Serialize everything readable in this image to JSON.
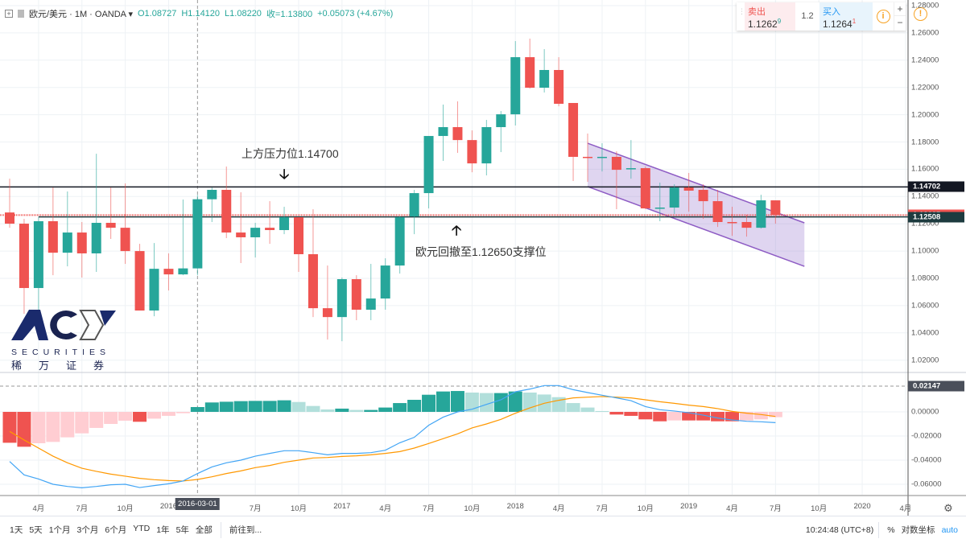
{
  "header": {
    "toolbar_icon": "add-indicator-icon",
    "symbol": "欧元/美元",
    "interval": "1M",
    "source": "OANDA",
    "open": "O1.08727",
    "high": "H1.14120",
    "low": "L1.08220",
    "close": "收=1.13800",
    "change": "+0.05073 (+4.67%)"
  },
  "quote": {
    "sell_label": "卖出",
    "sell_price": "1.1262",
    "sell_sup": "9",
    "spread": "1.2",
    "buy_label": "买入",
    "buy_price": "1.1264",
    "buy_sup": "1",
    "info": "i",
    "plus": "+",
    "minus": "−",
    "alert": "!"
  },
  "annotations": {
    "resistance": "上方压力位1.14700",
    "support": "欧元回撤至1.12650支撑位",
    "down_arrow": "🡣",
    "up_arrow": "🡡"
  },
  "logo": {
    "brand": "ACY",
    "sub": "SECURITIES",
    "cn": "稀万证券"
  },
  "price_axis": {
    "ticks": [
      "1.28000",
      "1.26000",
      "1.24000",
      "1.22000",
      "1.20000",
      "1.18000",
      "1.16000",
      "1.14000",
      "1.12000",
      "1.10000",
      "1.08000",
      "1.06000",
      "1.04000",
      "1.02000"
    ],
    "markers": [
      {
        "label": "1.14702",
        "color": "#131722"
      },
      {
        "label": "1.12635",
        "color": "#ef5350"
      },
      {
        "label": "1.12508",
        "color": "#1d3b3f"
      }
    ]
  },
  "macd_axis": {
    "ticks": [
      "0.00000",
      "-0.02000",
      "-0.04000",
      "-0.06000"
    ],
    "crosshair": "0.02147"
  },
  "time_axis": {
    "labels": [
      "4月",
      "7月",
      "10月",
      "2016",
      "7月",
      "10月",
      "2017",
      "4月",
      "7月",
      "10月",
      "2018",
      "4月",
      "7月",
      "10月",
      "2019",
      "4月",
      "7月",
      "10月",
      "2020",
      "4月"
    ],
    "crosshair": "2016-03-01"
  },
  "bottom": {
    "ranges": [
      "1天",
      "5天",
      "1个月",
      "3个月",
      "6个月",
      "YTD",
      "1年",
      "5年",
      "全部"
    ],
    "goto": "前往到...",
    "time": "10:24:48 (UTC+8)",
    "percent": "%",
    "log": "对数坐标",
    "auto": "auto"
  },
  "colors": {
    "up": "#26a69a",
    "down": "#ef5350",
    "up_light": "#b2dfdb",
    "down_light": "#ffcdd2",
    "macd": "#42a5f5",
    "signal": "#ff9800",
    "channel": "#9575cd"
  },
  "chart_data": {
    "type": "candlestick",
    "title": "欧元/美元 · 1M · OANDA",
    "start_month": "2015-02",
    "ylim": [
      1.02,
      1.28
    ],
    "ohlc": [
      [
        1.1283,
        1.1531,
        1.1171,
        1.1201
      ],
      [
        1.1201,
        1.1236,
        1.054,
        1.0729
      ],
      [
        1.0729,
        1.1248,
        1.0522,
        1.1219
      ],
      [
        1.1219,
        1.1466,
        1.0823,
        1.0988
      ],
      [
        1.0988,
        1.1437,
        1.0888,
        1.1136
      ],
      [
        1.1136,
        1.1213,
        1.0806,
        1.0983
      ],
      [
        1.0983,
        1.1714,
        1.0847,
        1.1207
      ],
      [
        1.1207,
        1.1466,
        1.1089,
        1.1171
      ],
      [
        1.1171,
        1.1496,
        1.0906,
        1.1
      ],
      [
        1.1,
        1.1053,
        1.0564,
        1.0564
      ],
      [
        1.0564,
        1.1059,
        1.0522,
        1.087
      ],
      [
        1.087,
        1.0983,
        1.0711,
        1.0829
      ],
      [
        1.0829,
        1.1378,
        1.0823,
        1.0873
      ],
      [
        1.0873,
        1.1412,
        1.0822,
        1.138
      ],
      [
        1.138,
        1.1466,
        1.1213,
        1.1449
      ],
      [
        1.1449,
        1.162,
        1.1095,
        1.1136
      ],
      [
        1.1136,
        1.1431,
        1.0912,
        1.1101
      ],
      [
        1.1101,
        1.1207,
        1.0953,
        1.1171
      ],
      [
        1.1171,
        1.1366,
        1.1053,
        1.1154
      ],
      [
        1.1154,
        1.1325,
        1.1124,
        1.1248
      ],
      [
        1.1248,
        1.1248,
        1.0847,
        1.0977
      ],
      [
        1.0977,
        1.1307,
        1.0516,
        1.0581
      ],
      [
        1.0581,
        1.0894,
        1.0351,
        1.0516
      ],
      [
        1.0516,
        1.0806,
        1.0339,
        1.0794
      ],
      [
        1.0794,
        1.0823,
        1.0493,
        1.057
      ],
      [
        1.057,
        1.0906,
        1.0493,
        1.0652
      ],
      [
        1.0652,
        1.0947,
        1.057,
        1.0894
      ],
      [
        1.0894,
        1.1254,
        1.0835,
        1.1248
      ],
      [
        1.1254,
        1.1449,
        1.1124,
        1.1425
      ],
      [
        1.1425,
        1.1844,
        1.1313,
        1.1844
      ],
      [
        1.1844,
        1.2074,
        1.1661,
        1.1909
      ],
      [
        1.1909,
        1.2098,
        1.172,
        1.1814
      ],
      [
        1.1814,
        1.1885,
        1.1578,
        1.1643
      ],
      [
        1.1643,
        1.1962,
        1.1555,
        1.1909
      ],
      [
        1.1909,
        1.2027,
        1.1726,
        1.2003
      ],
      [
        1.2003,
        1.254,
        1.1921,
        1.2422
      ],
      [
        1.2422,
        1.2558,
        1.2192,
        1.2198
      ],
      [
        1.2198,
        1.2481,
        1.2163,
        1.2328
      ],
      [
        1.2328,
        1.2422,
        1.2062,
        1.208
      ],
      [
        1.2086,
        1.2086,
        1.1514,
        1.1691
      ],
      [
        1.1691,
        1.1862,
        1.1508,
        1.1685
      ],
      [
        1.1685,
        1.1791,
        1.1584,
        1.1691
      ],
      [
        1.1691,
        1.1732,
        1.1307,
        1.1596
      ],
      [
        1.1602,
        1.1814,
        1.1531,
        1.1608
      ],
      [
        1.1608,
        1.162,
        1.1307,
        1.1313
      ],
      [
        1.1313,
        1.1502,
        1.1219,
        1.1319
      ],
      [
        1.1319,
        1.149,
        1.1272,
        1.1466
      ],
      [
        1.1466,
        1.1573,
        1.1289,
        1.1443
      ],
      [
        1.1449,
        1.149,
        1.1236,
        1.1366
      ],
      [
        1.1366,
        1.1449,
        1.1177,
        1.1213
      ],
      [
        1.1213,
        1.1325,
        1.1112,
        1.1207
      ],
      [
        1.1213,
        1.1266,
        1.1106,
        1.1171
      ],
      [
        1.1171,
        1.1413,
        1.1165,
        1.1372
      ],
      [
        1.1372,
        1.1372,
        1.1201,
        1.1266
      ]
    ],
    "hlines": [
      {
        "price": 1.14702,
        "style": "solid",
        "color": "#131722"
      },
      {
        "price": 1.12635,
        "style": "dotted",
        "color": "#ef5350"
      },
      {
        "price": 1.12508,
        "style": "solid",
        "color": "#1d3b3f",
        "from_index": 2
      }
    ],
    "channel": {
      "from_index": 40,
      "to_index": 55,
      "upper": [
        1.1791,
        1.1207
      ],
      "lower": [
        1.1473,
        1.0888
      ]
    },
    "macd": {
      "ylim": [
        -0.068,
        0.03
      ],
      "hist": [
        -0.0256,
        -0.0289,
        -0.026,
        -0.0249,
        -0.0211,
        -0.0178,
        -0.0133,
        -0.01,
        -0.0073,
        -0.0082,
        -0.0056,
        -0.0033,
        -0.0011,
        0.004,
        0.0078,
        0.0084,
        0.0089,
        0.0091,
        0.0091,
        0.0096,
        0.0082,
        0.0049,
        0.002,
        0.0027,
        0.0016,
        0.0016,
        0.0036,
        0.0073,
        0.01,
        0.0142,
        0.0169,
        0.0173,
        0.016,
        0.0156,
        0.0156,
        0.0169,
        0.016,
        0.0144,
        0.0122,
        0.0073,
        0.0036,
        0.0007,
        -0.0022,
        -0.0033,
        -0.0062,
        -0.0078,
        -0.0071,
        -0.0071,
        -0.0071,
        -0.0078,
        -0.0078,
        -0.0071,
        -0.0062,
        -0.0044
      ],
      "macd": [
        -0.0411,
        -0.0522,
        -0.0556,
        -0.06,
        -0.0618,
        -0.0629,
        -0.0618,
        -0.0604,
        -0.06,
        -0.0627,
        -0.0611,
        -0.0596,
        -0.0573,
        -0.0511,
        -0.0456,
        -0.0422,
        -0.04,
        -0.0367,
        -0.0344,
        -0.0322,
        -0.0322,
        -0.0338,
        -0.0356,
        -0.0344,
        -0.0344,
        -0.0338,
        -0.0318,
        -0.0256,
        -0.0211,
        -0.0111,
        -0.0044,
        0,
        0.0022,
        0.0062,
        0.01,
        0.0167,
        0.0189,
        0.0218,
        0.0218,
        0.0184,
        0.016,
        0.0138,
        0.0116,
        0.0093,
        0.0044,
        0.0018,
        0.0007,
        -0.0007,
        -0.0027,
        -0.0051,
        -0.0067,
        -0.0078,
        -0.0082,
        -0.0089
      ],
      "signal": [
        -0.0162,
        -0.0233,
        -0.03,
        -0.0367,
        -0.0422,
        -0.0467,
        -0.0493,
        -0.0516,
        -0.0533,
        -0.0551,
        -0.0562,
        -0.0569,
        -0.0573,
        -0.056,
        -0.0538,
        -0.0511,
        -0.0489,
        -0.0462,
        -0.0444,
        -0.0418,
        -0.04,
        -0.0382,
        -0.0378,
        -0.0369,
        -0.0364,
        -0.0356,
        -0.0344,
        -0.0329,
        -0.03,
        -0.0262,
        -0.0222,
        -0.0182,
        -0.0133,
        -0.01,
        -0.0062,
        -0.0011,
        0.0033,
        0.0071,
        0.0096,
        0.0116,
        0.0122,
        0.0127,
        0.0122,
        0.0116,
        0.01,
        0.0084,
        0.0071,
        0.0056,
        0.0044,
        0.0027,
        0.0004,
        -0.0011,
        -0.0022,
        -0.0038
      ]
    }
  }
}
